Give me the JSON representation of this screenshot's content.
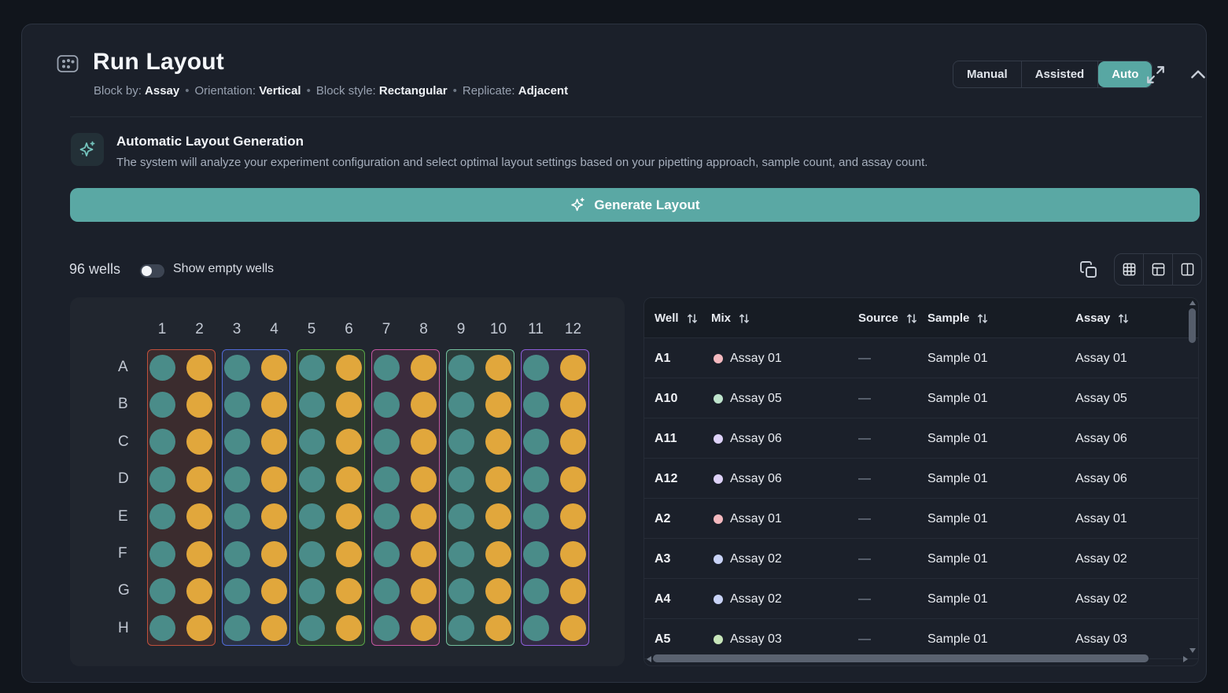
{
  "header": {
    "title": "Run Layout",
    "config": [
      {
        "label": "Block by:",
        "value": "Assay"
      },
      {
        "label": "Orientation:",
        "value": "Vertical"
      },
      {
        "label": "Block style:",
        "value": "Rectangular"
      },
      {
        "label": "Replicate:",
        "value": "Adjacent"
      }
    ],
    "separator": "•",
    "modes": [
      {
        "label": "Manual",
        "active": false
      },
      {
        "label": "Assisted",
        "active": false
      },
      {
        "label": "Auto",
        "active": true
      }
    ]
  },
  "info": {
    "title": "Automatic Layout Generation",
    "description": "The system will analyze your experiment configuration and select optimal layout settings based on your pipetting approach, sample count, and assay count."
  },
  "generate_button": {
    "label": "Generate Layout"
  },
  "plate_toolbar": {
    "well_count": "96 wells",
    "toggle_label": "Show empty wells",
    "toggle_on": false
  },
  "plate": {
    "columns": [
      "1",
      "2",
      "3",
      "4",
      "5",
      "6",
      "7",
      "8",
      "9",
      "10",
      "11",
      "12"
    ],
    "rows": [
      "A",
      "B",
      "C",
      "D",
      "E",
      "F",
      "G",
      "H"
    ],
    "well_colors": {
      "odd_column": "#4a8c89",
      "even_column": "#e1a73c"
    },
    "blocks": [
      {
        "name": "block-1",
        "border": "#c0503c",
        "bg": "#3b2c2e"
      },
      {
        "name": "block-2",
        "border": "#5169d5",
        "bg": "#2b3346"
      },
      {
        "name": "block-3",
        "border": "#57a447",
        "bg": "#2d3a2e"
      },
      {
        "name": "block-4",
        "border": "#c356a0",
        "bg": "#3b2c3d"
      },
      {
        "name": "block-5",
        "border": "#74c09e",
        "bg": "#2b3b38"
      },
      {
        "name": "block-6",
        "border": "#8c5dd8",
        "bg": "#332c45"
      }
    ]
  },
  "table": {
    "columns": [
      "Well",
      "Mix",
      "Source",
      "Sample",
      "Assay"
    ],
    "rows": [
      {
        "well": "A1",
        "mix": "Assay 01",
        "mix_color": "#f4b9bf",
        "source": "—",
        "sample": "Sample 01",
        "assay": "Assay 01"
      },
      {
        "well": "A10",
        "mix": "Assay 05",
        "mix_color": "#bfe4cd",
        "source": "—",
        "sample": "Sample 01",
        "assay": "Assay 05"
      },
      {
        "well": "A11",
        "mix": "Assay 06",
        "mix_color": "#ded2f8",
        "source": "—",
        "sample": "Sample 01",
        "assay": "Assay 06"
      },
      {
        "well": "A12",
        "mix": "Assay 06",
        "mix_color": "#ded2f8",
        "source": "—",
        "sample": "Sample 01",
        "assay": "Assay 06"
      },
      {
        "well": "A2",
        "mix": "Assay 01",
        "mix_color": "#f4b9bf",
        "source": "—",
        "sample": "Sample 01",
        "assay": "Assay 01"
      },
      {
        "well": "A3",
        "mix": "Assay 02",
        "mix_color": "#c9d3f7",
        "source": "—",
        "sample": "Sample 01",
        "assay": "Assay 02"
      },
      {
        "well": "A4",
        "mix": "Assay 02",
        "mix_color": "#c9d3f7",
        "source": "—",
        "sample": "Sample 01",
        "assay": "Assay 02"
      },
      {
        "well": "A5",
        "mix": "Assay 03",
        "mix_color": "#c8e6ba",
        "source": "—",
        "sample": "Sample 01",
        "assay": "Assay 03"
      }
    ]
  },
  "colors": {
    "accent": "#5aa8a4",
    "teal_well": "#4a8c89",
    "yellow_well": "#e1a73c"
  }
}
